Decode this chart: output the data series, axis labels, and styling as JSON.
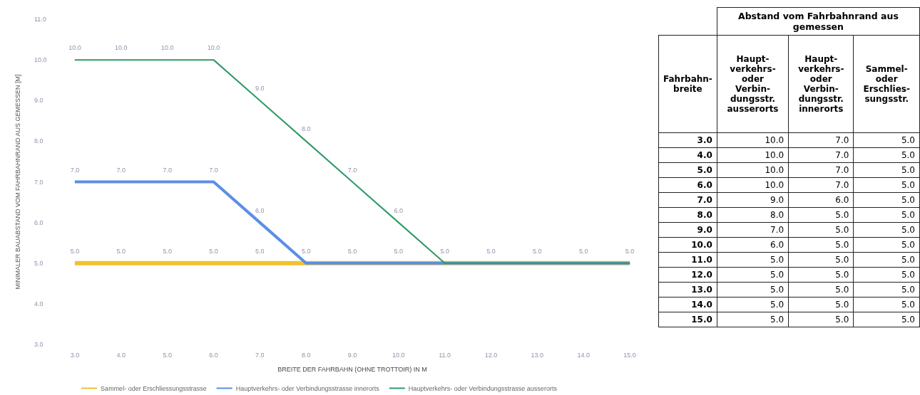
{
  "chart_data": {
    "type": "line",
    "xlabel": "BREITE DER FAHRBAHN (OHNE TROTTOIR) IN M",
    "ylabel": "MINIMALER BAUABSTAND VOM FAHRBAHNRAND AUS GEMESSEN [M]",
    "categories": [
      "3.0",
      "4.0",
      "5.0",
      "6.0",
      "7.0",
      "8.0",
      "9.0",
      "10.0",
      "11.0",
      "12.0",
      "13.0",
      "14.0",
      "15.0"
    ],
    "series": [
      {
        "name": "Sammel- oder Erschliessungsstrasse",
        "color": "#f2c12e",
        "values": [
          5,
          5,
          5,
          5,
          5,
          5,
          5,
          5,
          5,
          5,
          5,
          5,
          5
        ],
        "value_labels": [
          "5.0",
          "5.0",
          "5.0",
          "5.0",
          "5.0",
          "5.0",
          "5.0",
          "5.0",
          "5.0",
          "5.0",
          "5.0",
          "5.0",
          "5.0"
        ]
      },
      {
        "name": "Hauptverkehrs- oder Verbindungsstrasse innerorts",
        "color": "#5b8ee6",
        "values": [
          7,
          7,
          7,
          7,
          6,
          5,
          5,
          5,
          5,
          5,
          5,
          5,
          5
        ],
        "value_labels": [
          "7.0",
          "7.0",
          "7.0",
          "7.0",
          "6.0",
          null,
          null,
          null,
          null,
          null,
          null,
          null,
          null
        ]
      },
      {
        "name": "Hauptverkehrs- oder Verbindungsstrasse ausserorts",
        "color": "#2e9a66",
        "values": [
          10,
          10,
          10,
          10,
          9,
          8,
          7,
          6,
          5,
          5,
          5,
          5,
          5
        ],
        "value_labels": [
          "10.0",
          "10.0",
          "10.0",
          "10.0",
          "9.0",
          "8.0",
          "7.0",
          "6.0",
          null,
          null,
          null,
          null,
          null
        ]
      }
    ],
    "ylim": [
      3,
      11
    ],
    "yticks": [
      {
        "value": 3,
        "label": "3.0"
      },
      {
        "value": 4,
        "label": "4.0"
      },
      {
        "value": 5,
        "label": "5.0"
      },
      {
        "value": 6,
        "label": "6.0"
      },
      {
        "value": 7,
        "label": "7.0"
      },
      {
        "value": 8,
        "label": "8.0"
      },
      {
        "value": 9,
        "label": "9.0"
      },
      {
        "value": 10,
        "label": "10.0"
      },
      {
        "value": 11,
        "label": "11.0"
      }
    ],
    "grid": false,
    "legend": "bottom",
    "marker": "none",
    "line_style": "solid",
    "annotations": [
      "Abstand vom Fahrbahnrand aus gemessen",
      "Fahrbahn-\nbreite",
      "Haupt-\nverkehrs-\noder\nVerbin-\ndungsstr.\nausserorts",
      "Haupt-\nverkehrs-\noder\nVerbin-\ndungsstr.\ninnerorts",
      "Sammel-\noder\nErschlies-\nsungsstr."
    ]
  }
}
